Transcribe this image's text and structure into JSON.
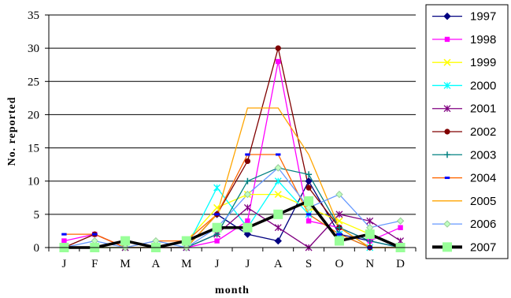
{
  "chart_data": {
    "type": "line",
    "title": "",
    "xlabel": "month",
    "ylabel": "No. reported",
    "categories": [
      "J",
      "F",
      "M",
      "A",
      "M",
      "J",
      "J",
      "A",
      "S",
      "O",
      "N",
      "D"
    ],
    "ylim": [
      0,
      35
    ],
    "yticks": [
      0,
      5,
      10,
      15,
      20,
      25,
      30,
      35
    ],
    "grid": "horizontal",
    "legend_position": "right",
    "series": [
      {
        "name": "1997",
        "color": "#000080",
        "marker": "diamond",
        "values": [
          0,
          0,
          1,
          0,
          0,
          5,
          2,
          1,
          10,
          2,
          1,
          0
        ]
      },
      {
        "name": "1998",
        "color": "#FF00FF",
        "marker": "square",
        "values": [
          1,
          2,
          0,
          0,
          0,
          1,
          4,
          28,
          4,
          3,
          1,
          3
        ]
      },
      {
        "name": "1999",
        "color": "#FFFF00",
        "marker": "x",
        "values": [
          0,
          0,
          0,
          0,
          1,
          6,
          8,
          8,
          6,
          4,
          2,
          0
        ]
      },
      {
        "name": "2000",
        "color": "#00FFFF",
        "marker": "asterisk",
        "values": [
          0,
          0,
          0,
          0,
          0,
          9,
          3,
          10,
          5,
          2,
          0,
          0
        ]
      },
      {
        "name": "2001",
        "color": "#800080",
        "marker": "star",
        "values": [
          0,
          0,
          0,
          0,
          0,
          2,
          6,
          3,
          0,
          5,
          4,
          1
        ]
      },
      {
        "name": "2002",
        "color": "#800000",
        "marker": "circle",
        "values": [
          0,
          2,
          0,
          0,
          0,
          5,
          13,
          30,
          9,
          3,
          0,
          0
        ]
      },
      {
        "name": "2003",
        "color": "#008080",
        "marker": "plus",
        "values": [
          0,
          0,
          0,
          0,
          0,
          2,
          10,
          12,
          11,
          3,
          1,
          0
        ]
      },
      {
        "name": "2004",
        "color": "#0000FF",
        "line_color": "#FF6600",
        "marker": "dash",
        "values": [
          2,
          2,
          0,
          1,
          1,
          5,
          14,
          14,
          5,
          2,
          0,
          0
        ]
      },
      {
        "name": "2005",
        "color": "#FFA500",
        "marker": "none",
        "values": [
          0,
          0,
          0,
          0,
          0,
          5,
          21,
          21,
          14,
          3,
          0,
          0
        ]
      },
      {
        "name": "2006",
        "color": "#6699FF",
        "marker": "diamond-fill",
        "values": [
          0,
          1,
          0,
          1,
          0,
          3,
          8,
          12,
          6,
          8,
          3,
          4
        ]
      },
      {
        "name": "2007",
        "color": "#000000",
        "marker_color": "#99FF99",
        "marker": "square-fill",
        "bold": true,
        "values": [
          0,
          0,
          1,
          0,
          1,
          3,
          3,
          5,
          7,
          1,
          2,
          0
        ]
      }
    ]
  }
}
